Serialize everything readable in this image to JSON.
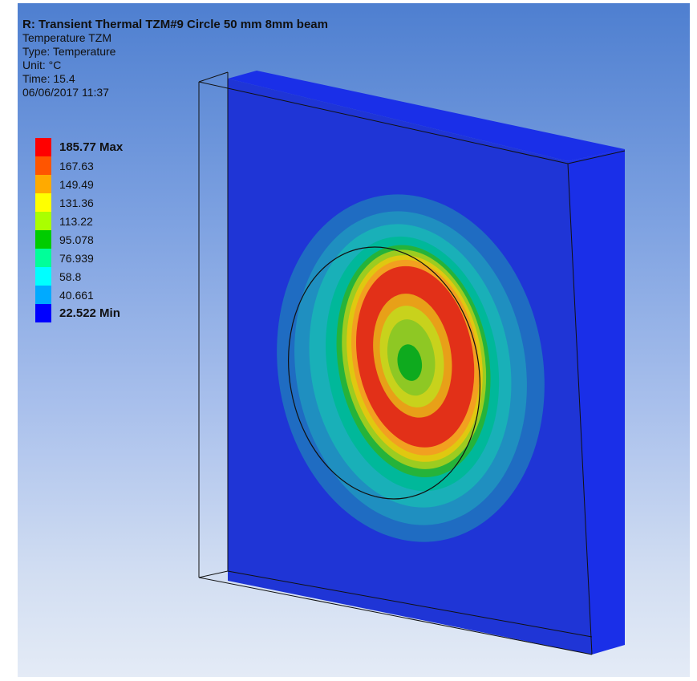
{
  "result": {
    "title": "R: Transient Thermal TZM#9 Circle 50 mm 8mm beam",
    "object": "Temperature TZM",
    "type": "Type: Temperature",
    "unit": "Unit: °C",
    "time": "Time: 15.4",
    "timestamp": "06/06/2017 11:37"
  },
  "legend": {
    "max_label": "185.77 Max",
    "ticks": [
      "167.63",
      "149.49",
      "131.36",
      "113.22",
      "95.078",
      "76.939",
      "58.8",
      "40.661"
    ],
    "min_label": "22.522 Min",
    "colors": [
      "#ff0000",
      "#ff5500",
      "#ffaa00",
      "#ffff00",
      "#aaff00",
      "#00cc00",
      "#00ff99",
      "#00ffff",
      "#00aaff",
      "#0000ff"
    ]
  },
  "model": {
    "plate_color": "#1f35d6",
    "edge_color": "#1a2fe8",
    "contour_colors": [
      "#1f6cc2",
      "#1f8fc0",
      "#19b0b8",
      "#00b89a",
      "#25b33a",
      "#9ccc20",
      "#e0c810",
      "#f2a020",
      "#e23018",
      "#e8a018",
      "#c8d21c",
      "#8ec824",
      "#0eaa1e"
    ]
  }
}
